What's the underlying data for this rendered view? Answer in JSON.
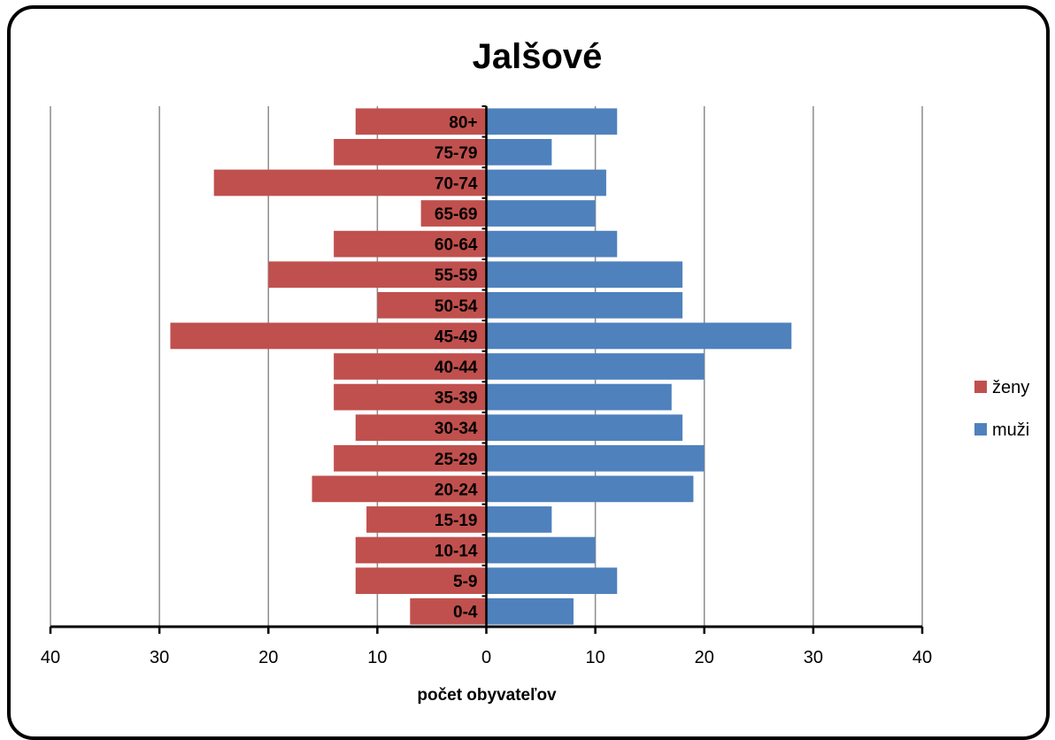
{
  "chart_data": {
    "type": "bar",
    "orientation": "horizontal",
    "title": "Jalšové",
    "xlabel": "počet obyvateľov",
    "categories": [
      "0-4",
      "5-9",
      "10-14",
      "15-19",
      "20-24",
      "25-29",
      "30-34",
      "35-39",
      "40-44",
      "45-49",
      "50-54",
      "55-59",
      "60-64",
      "65-69",
      "70-74",
      "75-79",
      "80+"
    ],
    "series": [
      {
        "name": "ženy",
        "color": "#c0504d",
        "side": "left",
        "values": [
          7,
          12,
          12,
          11,
          16,
          14,
          12,
          14,
          14,
          29,
          10,
          20,
          14,
          6,
          25,
          14,
          12
        ]
      },
      {
        "name": "muži",
        "color": "#4f81bd",
        "side": "right",
        "values": [
          8,
          12,
          10,
          6,
          19,
          20,
          18,
          17,
          20,
          28,
          18,
          18,
          12,
          10,
          11,
          6,
          12
        ]
      }
    ],
    "xlim": [
      -40,
      40
    ],
    "xticks": [
      -40,
      -30,
      -20,
      -10,
      0,
      10,
      20,
      30,
      40
    ],
    "xtick_labels": [
      "40",
      "30",
      "20",
      "10",
      "0",
      "10",
      "20",
      "30",
      "40"
    ],
    "grid": "vertical",
    "legend_position": "right"
  }
}
